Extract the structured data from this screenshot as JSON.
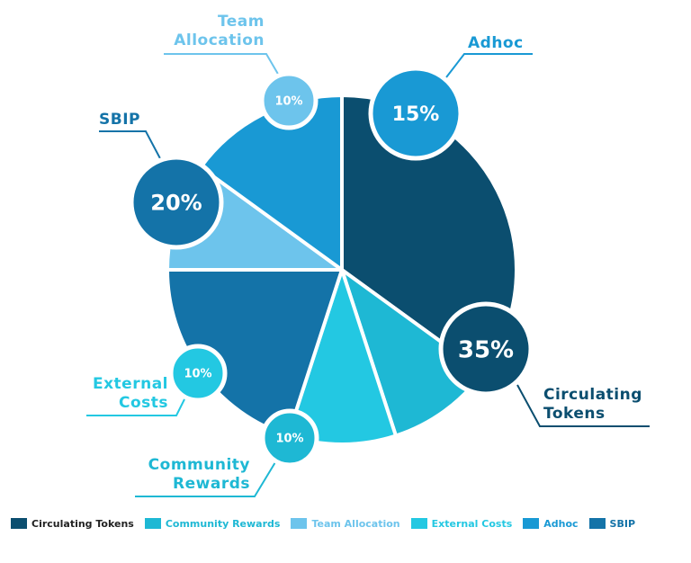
{
  "chart_data": {
    "type": "pie",
    "title": "",
    "slices": [
      {
        "label": "Circulating Tokens",
        "value": 35,
        "color": "#0b4e6f",
        "label_color": "#0b4e6f",
        "pct_text": "35%",
        "callout": [
          "Circulating",
          "Tokens"
        ]
      },
      {
        "label": "Community Rewards",
        "value": 10,
        "color": "#1eb8d4",
        "label_color": "#1eb8d4",
        "pct_text": "10%",
        "callout": [
          "Community",
          "Rewards"
        ]
      },
      {
        "label": "External Costs",
        "value": 10,
        "color": "#23c8e2",
        "label_color": "#23c8e2",
        "pct_text": "10%",
        "callout": [
          "External",
          "Costs"
        ]
      },
      {
        "label": "SBIP",
        "value": 20,
        "color": "#1473a8",
        "label_color": "#1473a8",
        "pct_text": "20%",
        "callout": [
          "SBIP"
        ]
      },
      {
        "label": "Team Allocation",
        "value": 10,
        "color": "#6dc4ec",
        "label_color": "#6dc4ec",
        "pct_text": "10%",
        "callout": [
          "Team",
          "Allocation"
        ]
      },
      {
        "label": "Adhoc",
        "value": 15,
        "color": "#1999d4",
        "label_color": "#1999d4",
        "pct_text": "15%",
        "callout": [
          "Adhoc"
        ]
      }
    ],
    "legend": {
      "placement": "bottom",
      "order": [
        "Circulating Tokens",
        "Community Rewards",
        "Team Allocation",
        "External Costs",
        "Adhoc",
        "SBIP"
      ]
    }
  }
}
